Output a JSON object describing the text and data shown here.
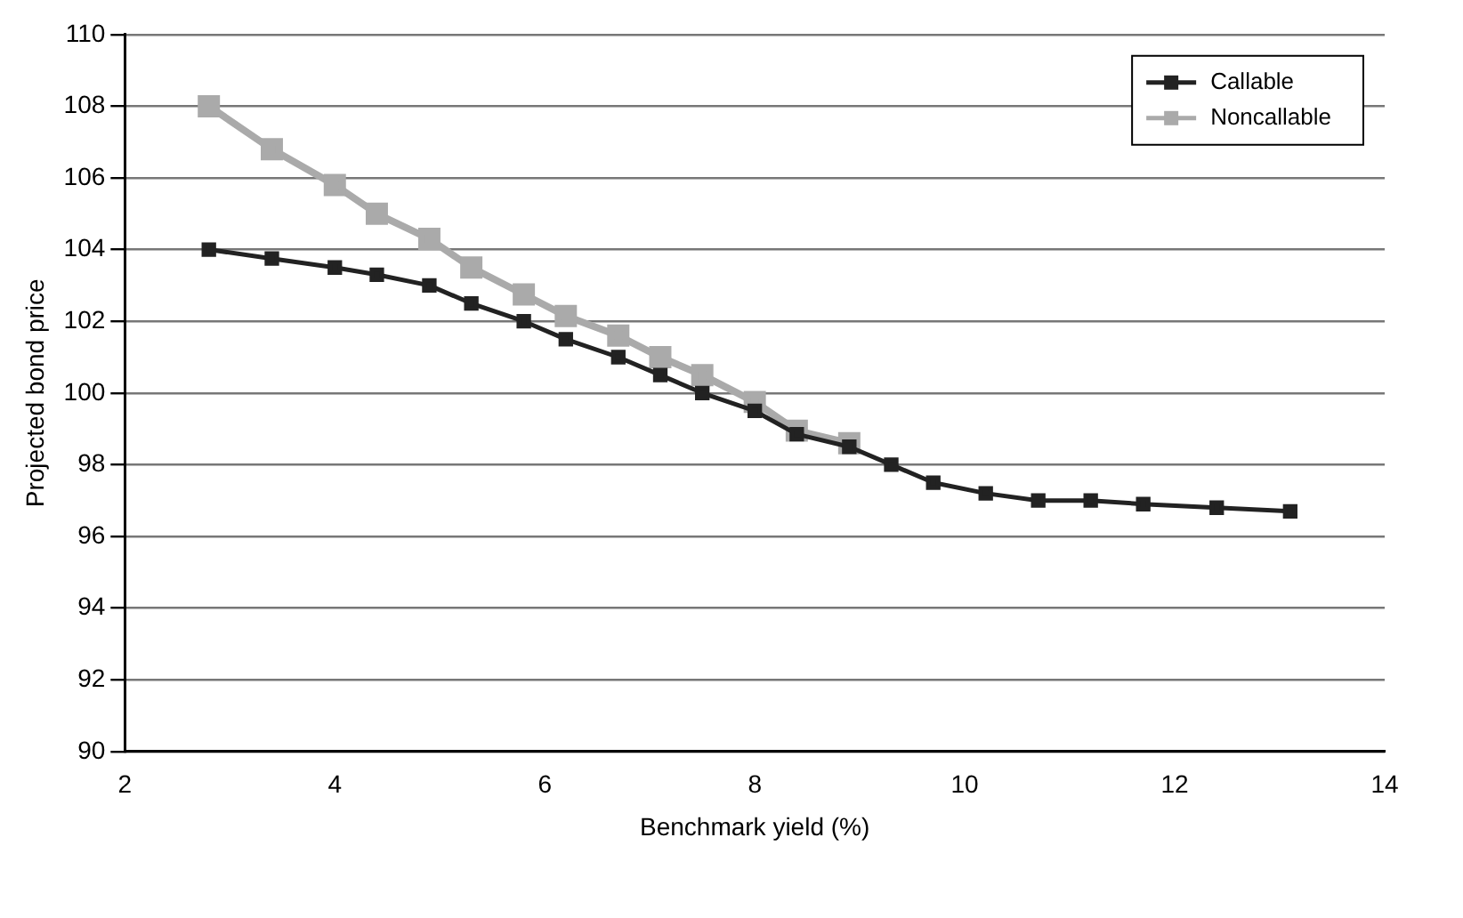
{
  "chart_data": {
    "type": "line",
    "xlabel": "Benchmark yield (%)",
    "ylabel": "Projected bond price",
    "x": [
      2.8,
      3.4,
      4.0,
      4.4,
      4.9,
      5.3,
      5.8,
      6.2,
      6.7,
      7.1,
      7.5,
      8.0,
      8.4,
      8.9,
      9.3,
      9.7,
      10.2,
      10.7,
      11.2,
      11.7,
      12.4,
      13.1
    ],
    "series": [
      {
        "name": "Callable",
        "color": "#222222",
        "values": [
          104,
          103.75,
          103.5,
          103.3,
          103,
          102.5,
          102,
          101.5,
          101,
          100.5,
          100,
          99.5,
          98.85,
          98.5,
          98,
          97.5,
          97.2,
          97,
          97,
          96.9,
          96.8,
          96.7
        ]
      },
      {
        "name": "Noncallable",
        "color": "#aaaaaa",
        "values": [
          108,
          106.8,
          105.8,
          105,
          104.3,
          103.5,
          102.75,
          102.15,
          101.6,
          101,
          100.5,
          99.75,
          98.95,
          98.6,
          null,
          null,
          null,
          null,
          null,
          null,
          null,
          null
        ]
      }
    ],
    "xlim": [
      2,
      14
    ],
    "xticks": [
      2,
      4,
      6,
      8,
      10,
      12,
      14
    ],
    "ylim": [
      90,
      110
    ],
    "yticks": [
      90,
      92,
      94,
      96,
      98,
      100,
      102,
      104,
      106,
      108,
      110
    ],
    "grid": "y",
    "legend": "top right",
    "marker": "square",
    "line_style": "solid"
  }
}
